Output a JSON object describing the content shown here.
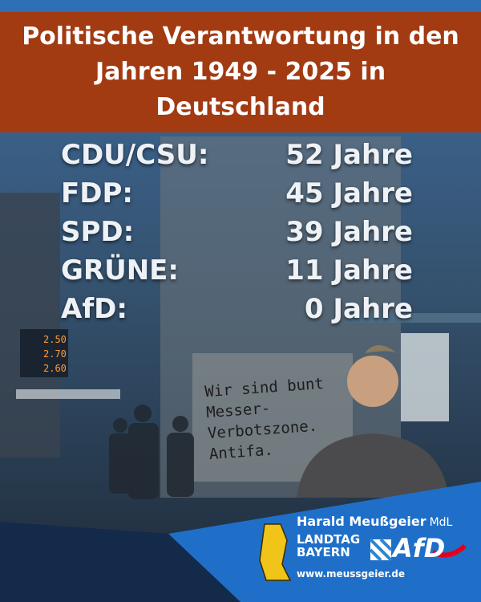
{
  "header": {
    "title": "Politische Verantwortung in den Jahren 1949 - 2025 in Deutschland"
  },
  "rows": [
    {
      "party": "CDU/CSU:",
      "duration": "52 Jahre"
    },
    {
      "party": "FDP:",
      "duration": "45 Jahre"
    },
    {
      "party": "SPD:",
      "duration": "39 Jahre"
    },
    {
      "party": "GRÜNE:",
      "duration": "11 Jahre"
    },
    {
      "party": "AfD:",
      "duration": "0 Jahre"
    }
  ],
  "scene": {
    "graffiti": [
      "Wir sind bunt",
      "Messer-",
      "Verbotszone.",
      "Antifa."
    ],
    "prices": [
      "2.50",
      "2.70",
      "2.60"
    ]
  },
  "footer": {
    "name": "Harald Meußgeier",
    "suffix": "MdL",
    "parliament": [
      "LANDTAG",
      "BAYERN"
    ],
    "party_logo": "AfD",
    "url": "www.meussgeier.de"
  }
}
